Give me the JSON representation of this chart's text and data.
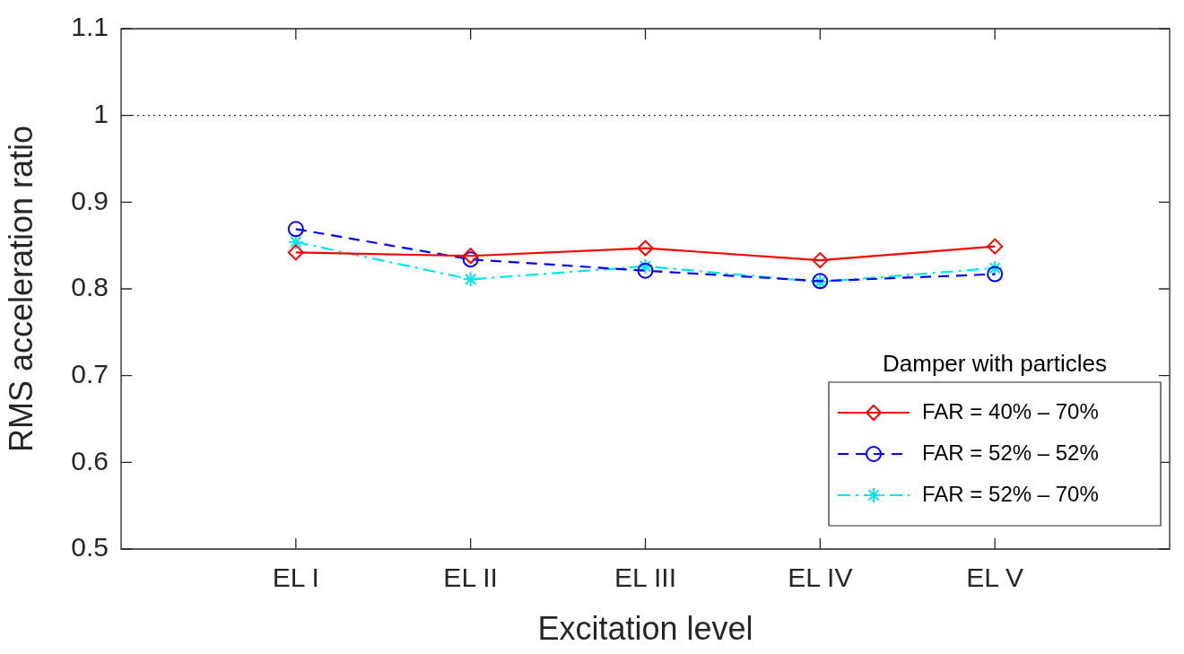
{
  "chart_data": {
    "type": "line",
    "xlabel": "Excitation level",
    "ylabel": "RMS acceleration ratio",
    "categories": [
      null,
      "EL I",
      "EL II",
      "EL III",
      "EL IV",
      "EL V",
      null
    ],
    "ylim": [
      0.5,
      1.1
    ],
    "yticks": [
      0.5,
      0.6,
      0.7,
      0.8,
      0.9,
      1,
      1.1
    ],
    "grid": false,
    "legend": "bottom right",
    "legend_title": "Damper with particles",
    "ref_lines": [
      {
        "axis": "y",
        "value": 1,
        "label": null,
        "color": "#000000",
        "line_style": "dotted"
      }
    ],
    "series": [
      {
        "name": "FAR = 40% – 70%",
        "color": "#ff0000",
        "values": [
          null,
          0.842,
          0.838,
          0.847,
          0.833,
          0.849,
          null
        ],
        "marker": "diamond",
        "line_style": "solid"
      },
      {
        "name": "FAR = 52% – 52%",
        "color": "#0000ff",
        "values": [
          null,
          0.869,
          0.834,
          0.821,
          0.809,
          0.817,
          null
        ],
        "marker": "circle",
        "line_style": "dashed"
      },
      {
        "name": "FAR = 52% – 70%",
        "color": "#00e5ee",
        "values": [
          null,
          0.854,
          0.811,
          0.826,
          0.808,
          0.824,
          null
        ],
        "marker": "cross",
        "line_style": "dashdot"
      }
    ]
  }
}
